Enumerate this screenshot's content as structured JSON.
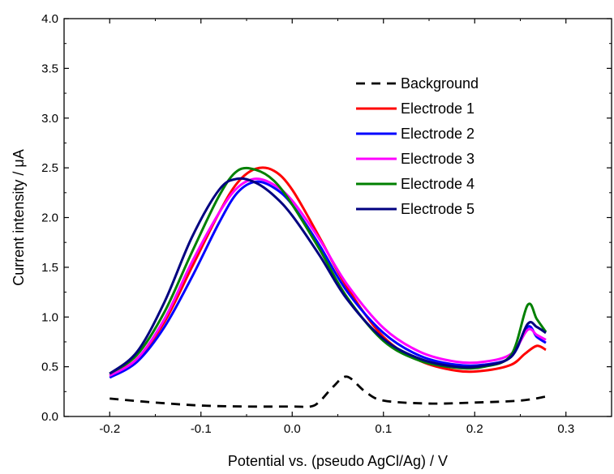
{
  "chart_data": {
    "type": "line",
    "title": "",
    "xlabel": "Potential vs. (pseudo AgCl/Ag) / V",
    "ylabel": "Current intensity / μA",
    "xlim": [
      -0.25,
      0.35
    ],
    "ylim": [
      0.0,
      4.0
    ],
    "x_ticks": [
      -0.2,
      -0.1,
      0.0,
      0.1,
      0.2,
      0.3
    ],
    "x_tick_labels": [
      "-0.2",
      "-0.1",
      "0.0",
      "0.1",
      "0.2",
      "0.3"
    ],
    "y_ticks": [
      0.0,
      0.5,
      1.0,
      1.5,
      2.0,
      2.5,
      3.0,
      3.5,
      4.0
    ],
    "y_tick_labels": [
      "0.0",
      "0.5",
      "1.0",
      "1.5",
      "2.0",
      "2.5",
      "3.0",
      "3.5",
      "4.0"
    ],
    "grid": false,
    "legend_position": "top-right",
    "series": [
      {
        "name": "Background",
        "color": "#000000",
        "dash": true,
        "x": [
          -0.2,
          -0.15,
          -0.1,
          -0.05,
          0.0,
          0.02,
          0.03,
          0.045,
          0.06,
          0.08,
          0.1,
          0.15,
          0.2,
          0.25,
          0.278
        ],
        "y": [
          0.18,
          0.14,
          0.11,
          0.1,
          0.1,
          0.1,
          0.15,
          0.3,
          0.4,
          0.25,
          0.16,
          0.13,
          0.14,
          0.16,
          0.2
        ]
      },
      {
        "name": "Electrode 1",
        "color": "#ff0000",
        "dash": false,
        "x": [
          -0.2,
          -0.17,
          -0.14,
          -0.11,
          -0.08,
          -0.06,
          -0.04,
          -0.02,
          0.0,
          0.03,
          0.06,
          0.1,
          0.14,
          0.18,
          0.21,
          0.24,
          0.255,
          0.268,
          0.278
        ],
        "y": [
          0.41,
          0.58,
          0.95,
          1.5,
          2.05,
          2.35,
          2.49,
          2.47,
          2.28,
          1.8,
          1.3,
          0.8,
          0.56,
          0.46,
          0.46,
          0.52,
          0.63,
          0.71,
          0.67
        ]
      },
      {
        "name": "Electrode 2",
        "color": "#0000ff",
        "dash": false,
        "x": [
          -0.2,
          -0.17,
          -0.14,
          -0.11,
          -0.08,
          -0.06,
          -0.04,
          -0.02,
          0.0,
          0.03,
          0.06,
          0.1,
          0.14,
          0.18,
          0.21,
          0.24,
          0.258,
          0.268,
          0.278
        ],
        "y": [
          0.39,
          0.55,
          0.9,
          1.4,
          1.95,
          2.25,
          2.36,
          2.3,
          2.13,
          1.72,
          1.26,
          0.84,
          0.61,
          0.52,
          0.52,
          0.6,
          0.9,
          0.8,
          0.74
        ]
      },
      {
        "name": "Electrode 3",
        "color": "#ff00ff",
        "dash": false,
        "x": [
          -0.2,
          -0.17,
          -0.14,
          -0.11,
          -0.08,
          -0.06,
          -0.04,
          -0.02,
          0.0,
          0.03,
          0.06,
          0.1,
          0.14,
          0.18,
          0.21,
          0.24,
          0.258,
          0.268,
          0.278
        ],
        "y": [
          0.41,
          0.58,
          0.98,
          1.55,
          2.05,
          2.3,
          2.39,
          2.33,
          2.17,
          1.78,
          1.33,
          0.89,
          0.65,
          0.55,
          0.55,
          0.63,
          0.87,
          0.82,
          0.77
        ]
      },
      {
        "name": "Electrode 4",
        "color": "#008000",
        "dash": false,
        "x": [
          -0.2,
          -0.17,
          -0.14,
          -0.11,
          -0.08,
          -0.06,
          -0.04,
          -0.02,
          0.0,
          0.03,
          0.06,
          0.1,
          0.14,
          0.18,
          0.21,
          0.24,
          0.258,
          0.268,
          0.278
        ],
        "y": [
          0.43,
          0.62,
          1.05,
          1.65,
          2.22,
          2.47,
          2.48,
          2.37,
          2.13,
          1.68,
          1.2,
          0.76,
          0.56,
          0.49,
          0.5,
          0.62,
          1.12,
          0.98,
          0.85
        ]
      },
      {
        "name": "Electrode 5",
        "color": "#000080",
        "dash": false,
        "x": [
          -0.2,
          -0.17,
          -0.14,
          -0.11,
          -0.08,
          -0.06,
          -0.04,
          -0.02,
          0.0,
          0.03,
          0.06,
          0.1,
          0.14,
          0.18,
          0.21,
          0.24,
          0.258,
          0.268,
          0.278
        ],
        "y": [
          0.43,
          0.65,
          1.15,
          1.8,
          2.28,
          2.39,
          2.35,
          2.22,
          2.02,
          1.62,
          1.18,
          0.78,
          0.58,
          0.5,
          0.51,
          0.6,
          0.93,
          0.9,
          0.84
        ]
      }
    ]
  }
}
